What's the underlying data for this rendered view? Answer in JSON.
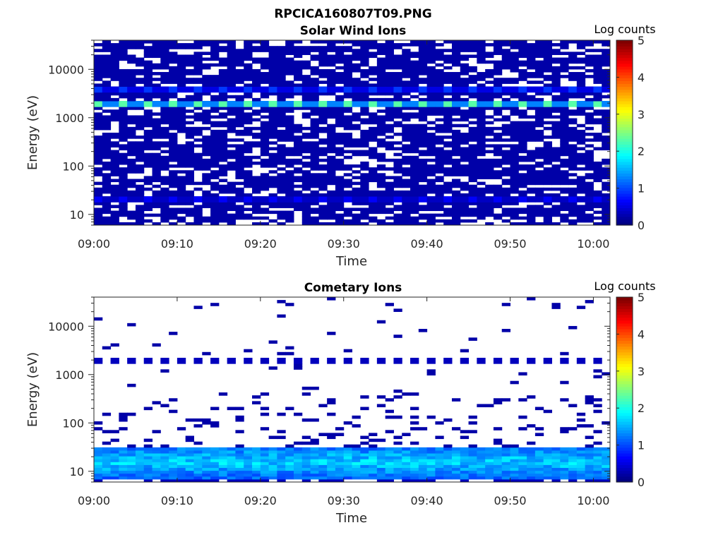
{
  "figure": {
    "file_title": "RPCICA160807T09.PNG"
  },
  "chart_data": [
    {
      "type": "heatmap",
      "title": "Solar Wind Ions",
      "xlabel": "Time",
      "ylabel": "Energy (eV)",
      "x_ticks": [
        "09:00",
        "09:10",
        "09:20",
        "09:30",
        "09:40",
        "09:50",
        "10:00"
      ],
      "y_ticks": [
        "10",
        "100",
        "1000",
        "10000"
      ],
      "y_scale": "log",
      "x_range": [
        "09:00",
        "10:02"
      ],
      "y_range_eV": [
        6,
        40000
      ],
      "colorbar": {
        "label": "Log counts",
        "range": [
          0,
          5
        ],
        "ticks": [
          "0",
          "1",
          "2",
          "3",
          "4",
          "5"
        ],
        "colormap": "jet"
      },
      "bands": [
        {
          "energy_eV": 1900,
          "level": 2.3,
          "note": "solar wind proton peak, intermittent bright"
        },
        {
          "energy_eV": 3800,
          "level": 0.9,
          "note": "alpha particle band"
        },
        {
          "energy_eV": 20,
          "level": 0.6
        }
      ],
      "background_level": 0.2,
      "empty_fraction": 0.25
    },
    {
      "type": "heatmap",
      "title": "Cometary Ions",
      "xlabel": "Time",
      "ylabel": "Energy (eV)",
      "x_ticks": [
        "09:00",
        "09:10",
        "09:20",
        "09:30",
        "09:40",
        "09:50",
        "10:00"
      ],
      "y_ticks": [
        "10",
        "100",
        "1000",
        "10000"
      ],
      "y_scale": "log",
      "x_range": [
        "09:00",
        "10:02"
      ],
      "y_range_eV": [
        6,
        40000
      ],
      "colorbar": {
        "label": "Log counts",
        "range": [
          0,
          5
        ],
        "ticks": [
          "0",
          "1",
          "2",
          "3",
          "4",
          "5"
        ],
        "colormap": "jet"
      },
      "bands": [
        {
          "energy_eV": 1900,
          "level": 0.3,
          "note": "leakage of solar wind protons"
        },
        {
          "energy_eV_range": [
            7,
            30
          ],
          "level_peak": 1.8,
          "note": "low-energy cometary ions"
        }
      ],
      "sparse_level": 0.2
    }
  ]
}
